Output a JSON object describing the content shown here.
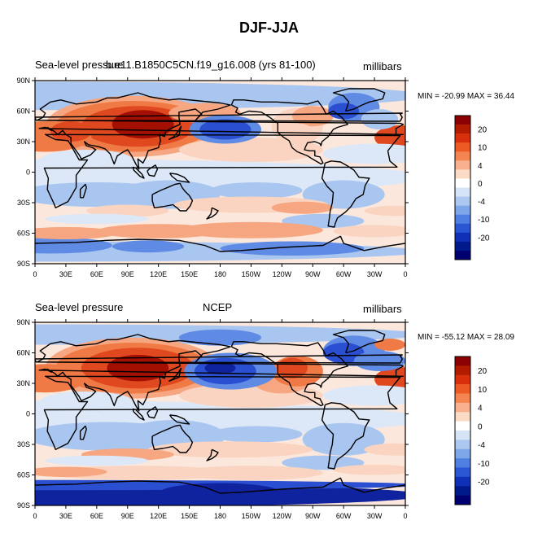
{
  "title": "DJF-JJA",
  "panels": [
    {
      "left_label": "Sea-level pressure",
      "center_label": "b.e11.B1850C5CN.f19_g16.008 (yrs 81-100)",
      "right_label": "millibars",
      "min_max": "MIN = -20.99 MAX =  36.44"
    },
    {
      "left_label": "Sea-level pressure",
      "center_label": "NCEP",
      "right_label": "millibars",
      "min_max": "MIN = -55.12 MAX =  28.09"
    }
  ],
  "lat_ticks": [
    "90N",
    "60N",
    "30N",
    "0",
    "30S",
    "60S",
    "90S"
  ],
  "lon_ticks": [
    "0",
    "30E",
    "60E",
    "90E",
    "120E",
    "150E",
    "180",
    "150W",
    "120W",
    "90W",
    "60W",
    "30W",
    "0"
  ],
  "colorbar": {
    "labels": [
      "20",
      "10",
      "4",
      "0",
      "-4",
      "-10",
      "-20"
    ],
    "colors": [
      "#8b0000",
      "#b31b00",
      "#d8300c",
      "#ee5a24",
      "#f48552",
      "#f8b08e",
      "#fbdac6",
      "#ffffff",
      "#d6e4f7",
      "#adc8f0",
      "#7ea7ea",
      "#4f7fe0",
      "#2a55d3",
      "#1030b8",
      "#001a8c",
      "#000070"
    ]
  },
  "palette": {
    "deep_red": "#a30f00",
    "red": "#e04820",
    "orange": "#f07a45",
    "salmon": "#f6a680",
    "pink": "#fad4c0",
    "pale_blue": "#dce8f8",
    "light_blue": "#a9c6f0",
    "blue": "#5f8be4",
    "dark_blue": "#2a4fd0",
    "navy": "#10239e"
  }
}
